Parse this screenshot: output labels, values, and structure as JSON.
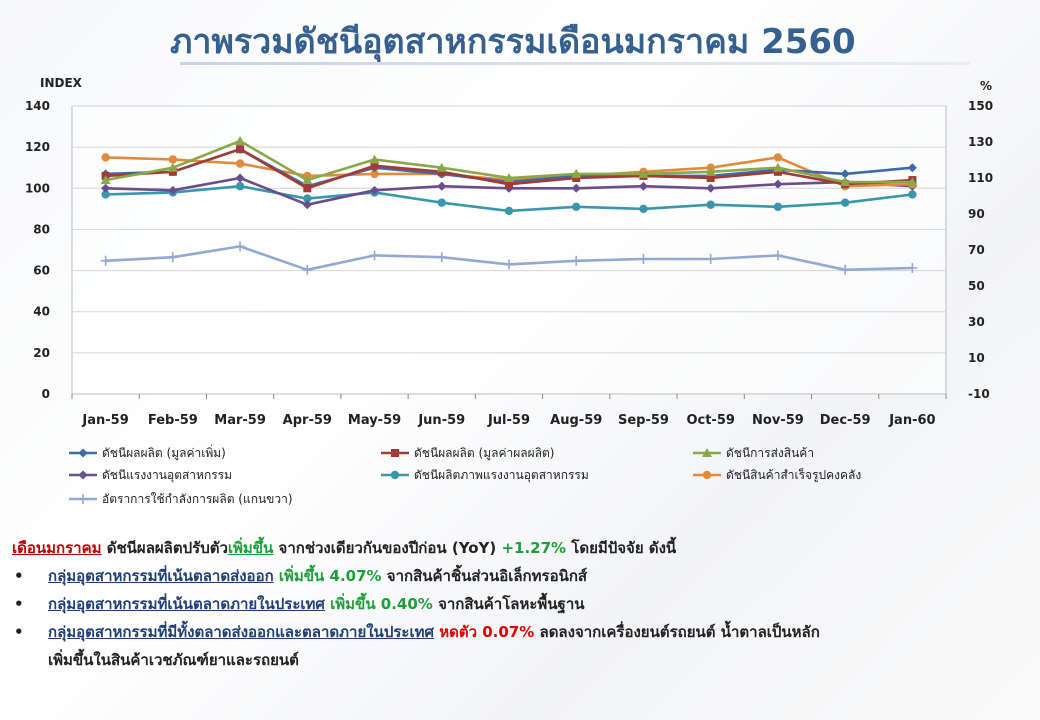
{
  "title": "ภาพรวมดัชนีอุตสาหกรรมเดือนมกราคม 2560",
  "chart_data": {
    "type": "line",
    "categories": [
      "Jan-59",
      "Feb-59",
      "Mar-59",
      "Apr-59",
      "May-59",
      "Jun-59",
      "Jul-59",
      "Aug-59",
      "Sep-59",
      "Oct-59",
      "Nov-59",
      "Dec-59",
      "Jan-60"
    ],
    "left_axis": {
      "label": "INDEX",
      "ylim": [
        0,
        140
      ],
      "ticks": [
        "0",
        "20",
        "40",
        "60",
        "80",
        "100",
        "120",
        "140"
      ]
    },
    "right_axis": {
      "label": "%",
      "ylim": [
        -10,
        150
      ],
      "ticks": [
        "-10",
        "10",
        "30",
        "50",
        "70",
        "90",
        "110",
        "130",
        "150"
      ]
    },
    "series": [
      {
        "name": "ดัชนีผลผลิต (มูลค่าเพิ่ม)",
        "color": "#3e6aa8",
        "marker": "diamond",
        "axis": "left",
        "values": [
          107,
          108,
          119,
          101,
          110,
          107,
          103,
          106,
          106,
          106,
          109,
          107,
          110
        ]
      },
      {
        "name": "ดัชนีผลผลิต (มูลค่าผลผลิต)",
        "color": "#a33a36",
        "marker": "square",
        "axis": "left",
        "values": [
          106,
          108,
          119,
          100,
          111,
          108,
          102,
          105,
          106,
          105,
          108,
          102,
          104
        ]
      },
      {
        "name": "ดัชนีการส่งสินค้า",
        "color": "#8aa84a",
        "marker": "triangle",
        "axis": "left",
        "values": [
          104,
          110,
          123,
          104,
          114,
          110,
          105,
          107,
          107,
          108,
          110,
          103,
          103
        ]
      },
      {
        "name": "ดัชนีแรงงานอุตสาหกรรม",
        "color": "#6a4d8d",
        "marker": "diamond",
        "axis": "left",
        "values": [
          100,
          99,
          105,
          92,
          99,
          101,
          100,
          100,
          101,
          100,
          102,
          103,
          101
        ]
      },
      {
        "name": "ดัชนีผลิตภาพแรงงานอุตสาหกรรม",
        "color": "#3a96aa",
        "marker": "circle",
        "axis": "left",
        "values": [
          97,
          98,
          101,
          95,
          98,
          93,
          89,
          91,
          90,
          92,
          91,
          93,
          97
        ]
      },
      {
        "name": "ดัชนีสินค้าสำเร็จรูปคงคลัง",
        "color": "#e08a3a",
        "marker": "circle",
        "axis": "left",
        "values": [
          115,
          114,
          112,
          106,
          107,
          107,
          104,
          106,
          108,
          110,
          115,
          101,
          102
        ]
      },
      {
        "name": "อัตราการใช้กำลังการผลิต (แกนขวา)",
        "color": "#93a9d3",
        "marker": "plus",
        "axis": "right",
        "values": [
          64,
          66,
          72,
          59,
          67,
          66,
          62,
          64,
          65,
          65,
          67,
          59,
          60
        ]
      }
    ],
    "grid": true,
    "legend_position": "bottom"
  },
  "text": {
    "intro_label": "เดือนมกราคม",
    "intro_a": " ดัชนีผลผลิตปรับตัว",
    "intro_up": "เพิ่มขึ้น",
    "intro_b": "  จากช่วงเดียวกันของปีก่อน (YoY) ",
    "intro_val": "+1.27%",
    "intro_c": " โดยมีปัจจัย ดังนี้",
    "bullets": [
      {
        "label": "กลุ่มอุตสาหกรรมที่เน้นตลาดส่งออก",
        "change": " เพิ่มขึ้น 4.07%",
        "detail": " จากสินค้าชิ้นส่วนอิเล็กทรอนิกส์",
        "detail2": ""
      },
      {
        "label": "กลุ่มอุตสาหกรรมที่เน้นตลาดภายในประเทศ",
        "change": " เพิ่มขึ้น 0.40%",
        "detail": " จากสินค้าโลหะพื้นฐาน",
        "detail2": ""
      },
      {
        "label": "กลุ่มอุตสาหกรรมที่มีทั้งตลาดส่งออกและตลาดภายในประเทศ",
        "change": " หดตัว 0.07%",
        "detail": " ลดลงจากเครื่องยนต์รถยนต์ น้ำตาลเป็นหลัก",
        "detail2": "เพิ่มขึ้นในสินค้าเวชภัณฑ์ยาและรถยนต์"
      }
    ]
  }
}
